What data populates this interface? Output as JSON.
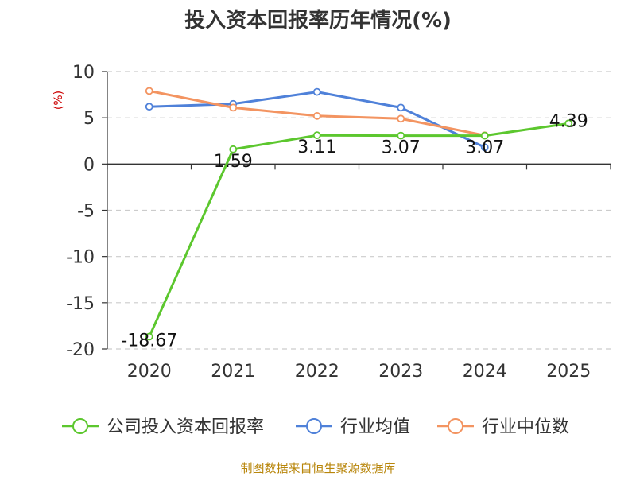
{
  "chart_data": {
    "type": "line",
    "title": "投入资本回报率历年情况(%)",
    "ylabel": "(%)",
    "categories": [
      "2020",
      "2021",
      "2022",
      "2023",
      "2024",
      "2025"
    ],
    "ylim": [
      -20,
      10
    ],
    "yticks": [
      10,
      5,
      0,
      -5,
      -10,
      -15,
      -20
    ],
    "grid": true,
    "legend_position": "bottom",
    "series": [
      {
        "name": "公司投入资本回报率",
        "color": "#5cc72e",
        "values": [
          -18.67,
          1.59,
          3.11,
          3.07,
          3.07,
          4.39
        ],
        "labels": [
          "-18.67",
          "1.59",
          "3.11",
          "3.07",
          "3.07",
          "4.39"
        ]
      },
      {
        "name": "行业均值",
        "color": "#4f81d9",
        "values": [
          6.2,
          6.5,
          7.8,
          6.1,
          1.8,
          null
        ]
      },
      {
        "name": "行业中位数",
        "color": "#f39461",
        "values": [
          7.9,
          6.1,
          5.2,
          4.9,
          3.1,
          null
        ]
      }
    ]
  },
  "source": "制图数据来自恒生聚源数据库"
}
